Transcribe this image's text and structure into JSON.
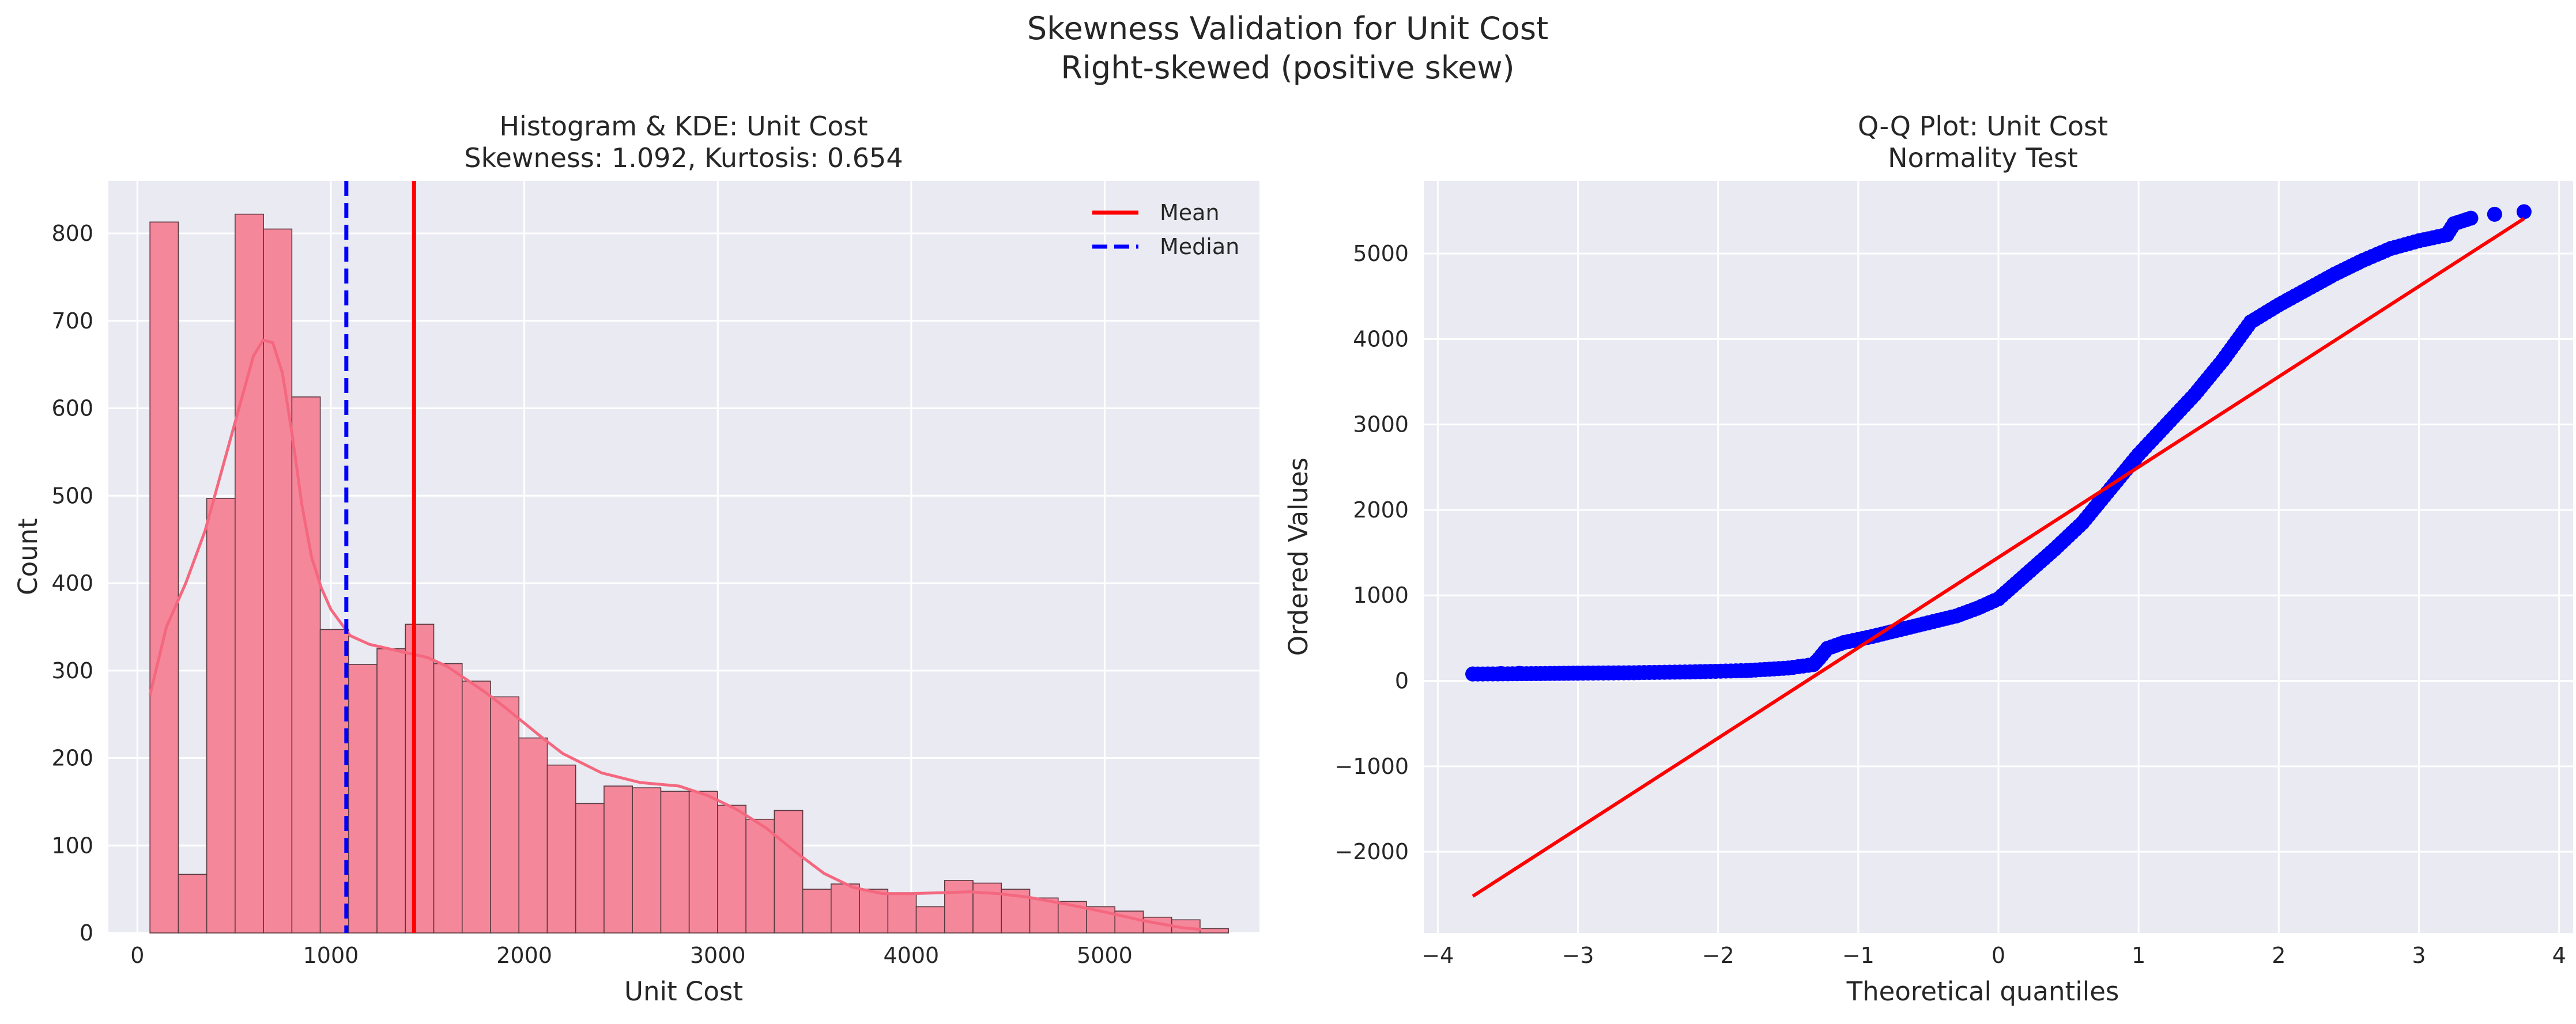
{
  "figure": {
    "suptitle_line1": "Skewness Validation for Unit Cost",
    "suptitle_line2": "Right-skewed (positive skew)"
  },
  "colors": {
    "axes_background": "#eaeaf2",
    "grid": "#ffffff",
    "hist_fill": "#f5879b",
    "hist_edge": "#5a3a40",
    "kde": "#f4687f",
    "mean": "#ff0000",
    "median": "#0000ff",
    "qq_points": "#0000ff",
    "qq_line": "#ff0000"
  },
  "chart_data": [
    {
      "type": "bar",
      "subtype": "histogram_with_kde",
      "title_line1": "Histogram & KDE: Unit Cost",
      "title_line2": "Skewness: 1.092, Kurtosis: 0.654",
      "xlabel": "Unit Cost",
      "ylabel": "Count",
      "xlim": [
        -150,
        5800
      ],
      "ylim": [
        0,
        860
      ],
      "xticks": [
        0,
        1000,
        2000,
        3000,
        4000,
        5000
      ],
      "yticks": [
        0,
        100,
        200,
        300,
        400,
        500,
        600,
        700,
        800
      ],
      "grid": true,
      "legend_position": "top-right",
      "bin_start": 65,
      "bin_width": 146.7,
      "counts": [
        813,
        67,
        497,
        822,
        805,
        613,
        347,
        307,
        325,
        353,
        308,
        288,
        270,
        223,
        192,
        148,
        168,
        166,
        162,
        162,
        146,
        130,
        140,
        50,
        56,
        50,
        46,
        30,
        60,
        57,
        50,
        40,
        36,
        30,
        25,
        18,
        15,
        5
      ],
      "kde": {
        "x": [
          65,
          150,
          250,
          350,
          450,
          550,
          600,
          650,
          700,
          750,
          800,
          850,
          900,
          950,
          1000,
          1100,
          1200,
          1300,
          1400,
          1500,
          1600,
          1700,
          1800,
          1900,
          2000,
          2100,
          2200,
          2400,
          2600,
          2800,
          2950,
          3100,
          3250,
          3400,
          3550,
          3700,
          3850,
          4000,
          4150,
          4300,
          4450,
          4600,
          4800,
          5000,
          5200,
          5400,
          5500
        ],
        "y": [
          272,
          350,
          400,
          460,
          540,
          620,
          660,
          678,
          675,
          640,
          570,
          490,
          430,
          395,
          370,
          340,
          330,
          325,
          320,
          315,
          305,
          290,
          275,
          258,
          240,
          222,
          205,
          183,
          172,
          168,
          157,
          141,
          120,
          93,
          68,
          52,
          45,
          45,
          46,
          47,
          45,
          41,
          33,
          24,
          14,
          6,
          4
        ]
      },
      "lines": [
        {
          "name": "Mean",
          "x": 1430
        },
        {
          "name": "Median",
          "x": 1080
        }
      ]
    },
    {
      "type": "scatter",
      "subtype": "qq_plot",
      "title_line1": "Q-Q Plot: Unit Cost",
      "title_line2": "Normality Test",
      "xlabel": "Theoretical quantiles",
      "ylabel": "Ordered Values",
      "xlim": [
        -4.1,
        4.1
      ],
      "ylim": [
        -2950,
        5850
      ],
      "xticks": [
        -4,
        -3,
        -2,
        -1,
        0,
        1,
        2,
        3,
        4
      ],
      "yticks": [
        -2000,
        -1000,
        0,
        1000,
        2000,
        3000,
        4000,
        5000
      ],
      "grid": true,
      "curve": [
        [
          -3.75,
          80
        ],
        [
          -3.5,
          82
        ],
        [
          -3.3,
          85
        ],
        [
          -3.0,
          90
        ],
        [
          -2.6,
          95
        ],
        [
          -2.2,
          105
        ],
        [
          -1.8,
          120
        ],
        [
          -1.5,
          150
        ],
        [
          -1.32,
          190
        ],
        [
          -1.28,
          260
        ],
        [
          -1.22,
          380
        ],
        [
          -1.1,
          450
        ],
        [
          -0.9,
          520
        ],
        [
          -0.7,
          600
        ],
        [
          -0.5,
          680
        ],
        [
          -0.3,
          760
        ],
        [
          -0.15,
          850
        ],
        [
          0.0,
          960
        ],
        [
          0.2,
          1250
        ],
        [
          0.4,
          1540
        ],
        [
          0.6,
          1850
        ],
        [
          0.8,
          2250
        ],
        [
          1.0,
          2650
        ],
        [
          1.2,
          3000
        ],
        [
          1.4,
          3350
        ],
        [
          1.6,
          3750
        ],
        [
          1.8,
          4200
        ],
        [
          2.0,
          4400
        ],
        [
          2.2,
          4580
        ],
        [
          2.4,
          4760
        ],
        [
          2.6,
          4920
        ],
        [
          2.8,
          5060
        ],
        [
          3.0,
          5150
        ],
        [
          3.2,
          5220
        ],
        [
          3.25,
          5350
        ],
        [
          3.4,
          5430
        ]
      ],
      "extremes": [
        [
          -3.75,
          80
        ],
        [
          -3.55,
          85
        ],
        [
          -3.42,
          88
        ],
        [
          3.54,
          5460
        ],
        [
          3.75,
          5490
        ]
      ],
      "fit_line": {
        "x": [
          -3.75,
          3.75
        ],
        "y": [
          -2520,
          5410
        ]
      }
    }
  ]
}
